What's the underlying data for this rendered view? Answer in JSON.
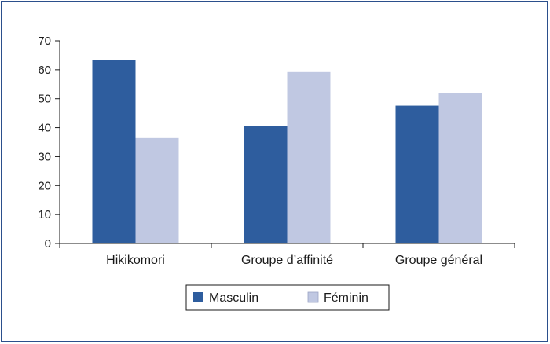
{
  "chart_data": {
    "type": "bar",
    "categories": [
      "Hikikomori",
      "Groupe d’affinité",
      "Groupe général"
    ],
    "series": [
      {
        "name": "Masculin",
        "values": [
          63.3,
          40.5,
          47.6
        ],
        "color": "#2e5d9e"
      },
      {
        "name": "Féminin",
        "values": [
          36.4,
          59.2,
          51.9
        ],
        "color": "#c0c8e2"
      }
    ],
    "y_ticks": [
      "0",
      "10",
      "20",
      "30",
      "40",
      "50",
      "60",
      "70"
    ],
    "ylim": [
      0,
      70
    ],
    "grid": false,
    "legend_position": "bottom-center",
    "title": "",
    "xlabel": "",
    "ylabel": ""
  }
}
